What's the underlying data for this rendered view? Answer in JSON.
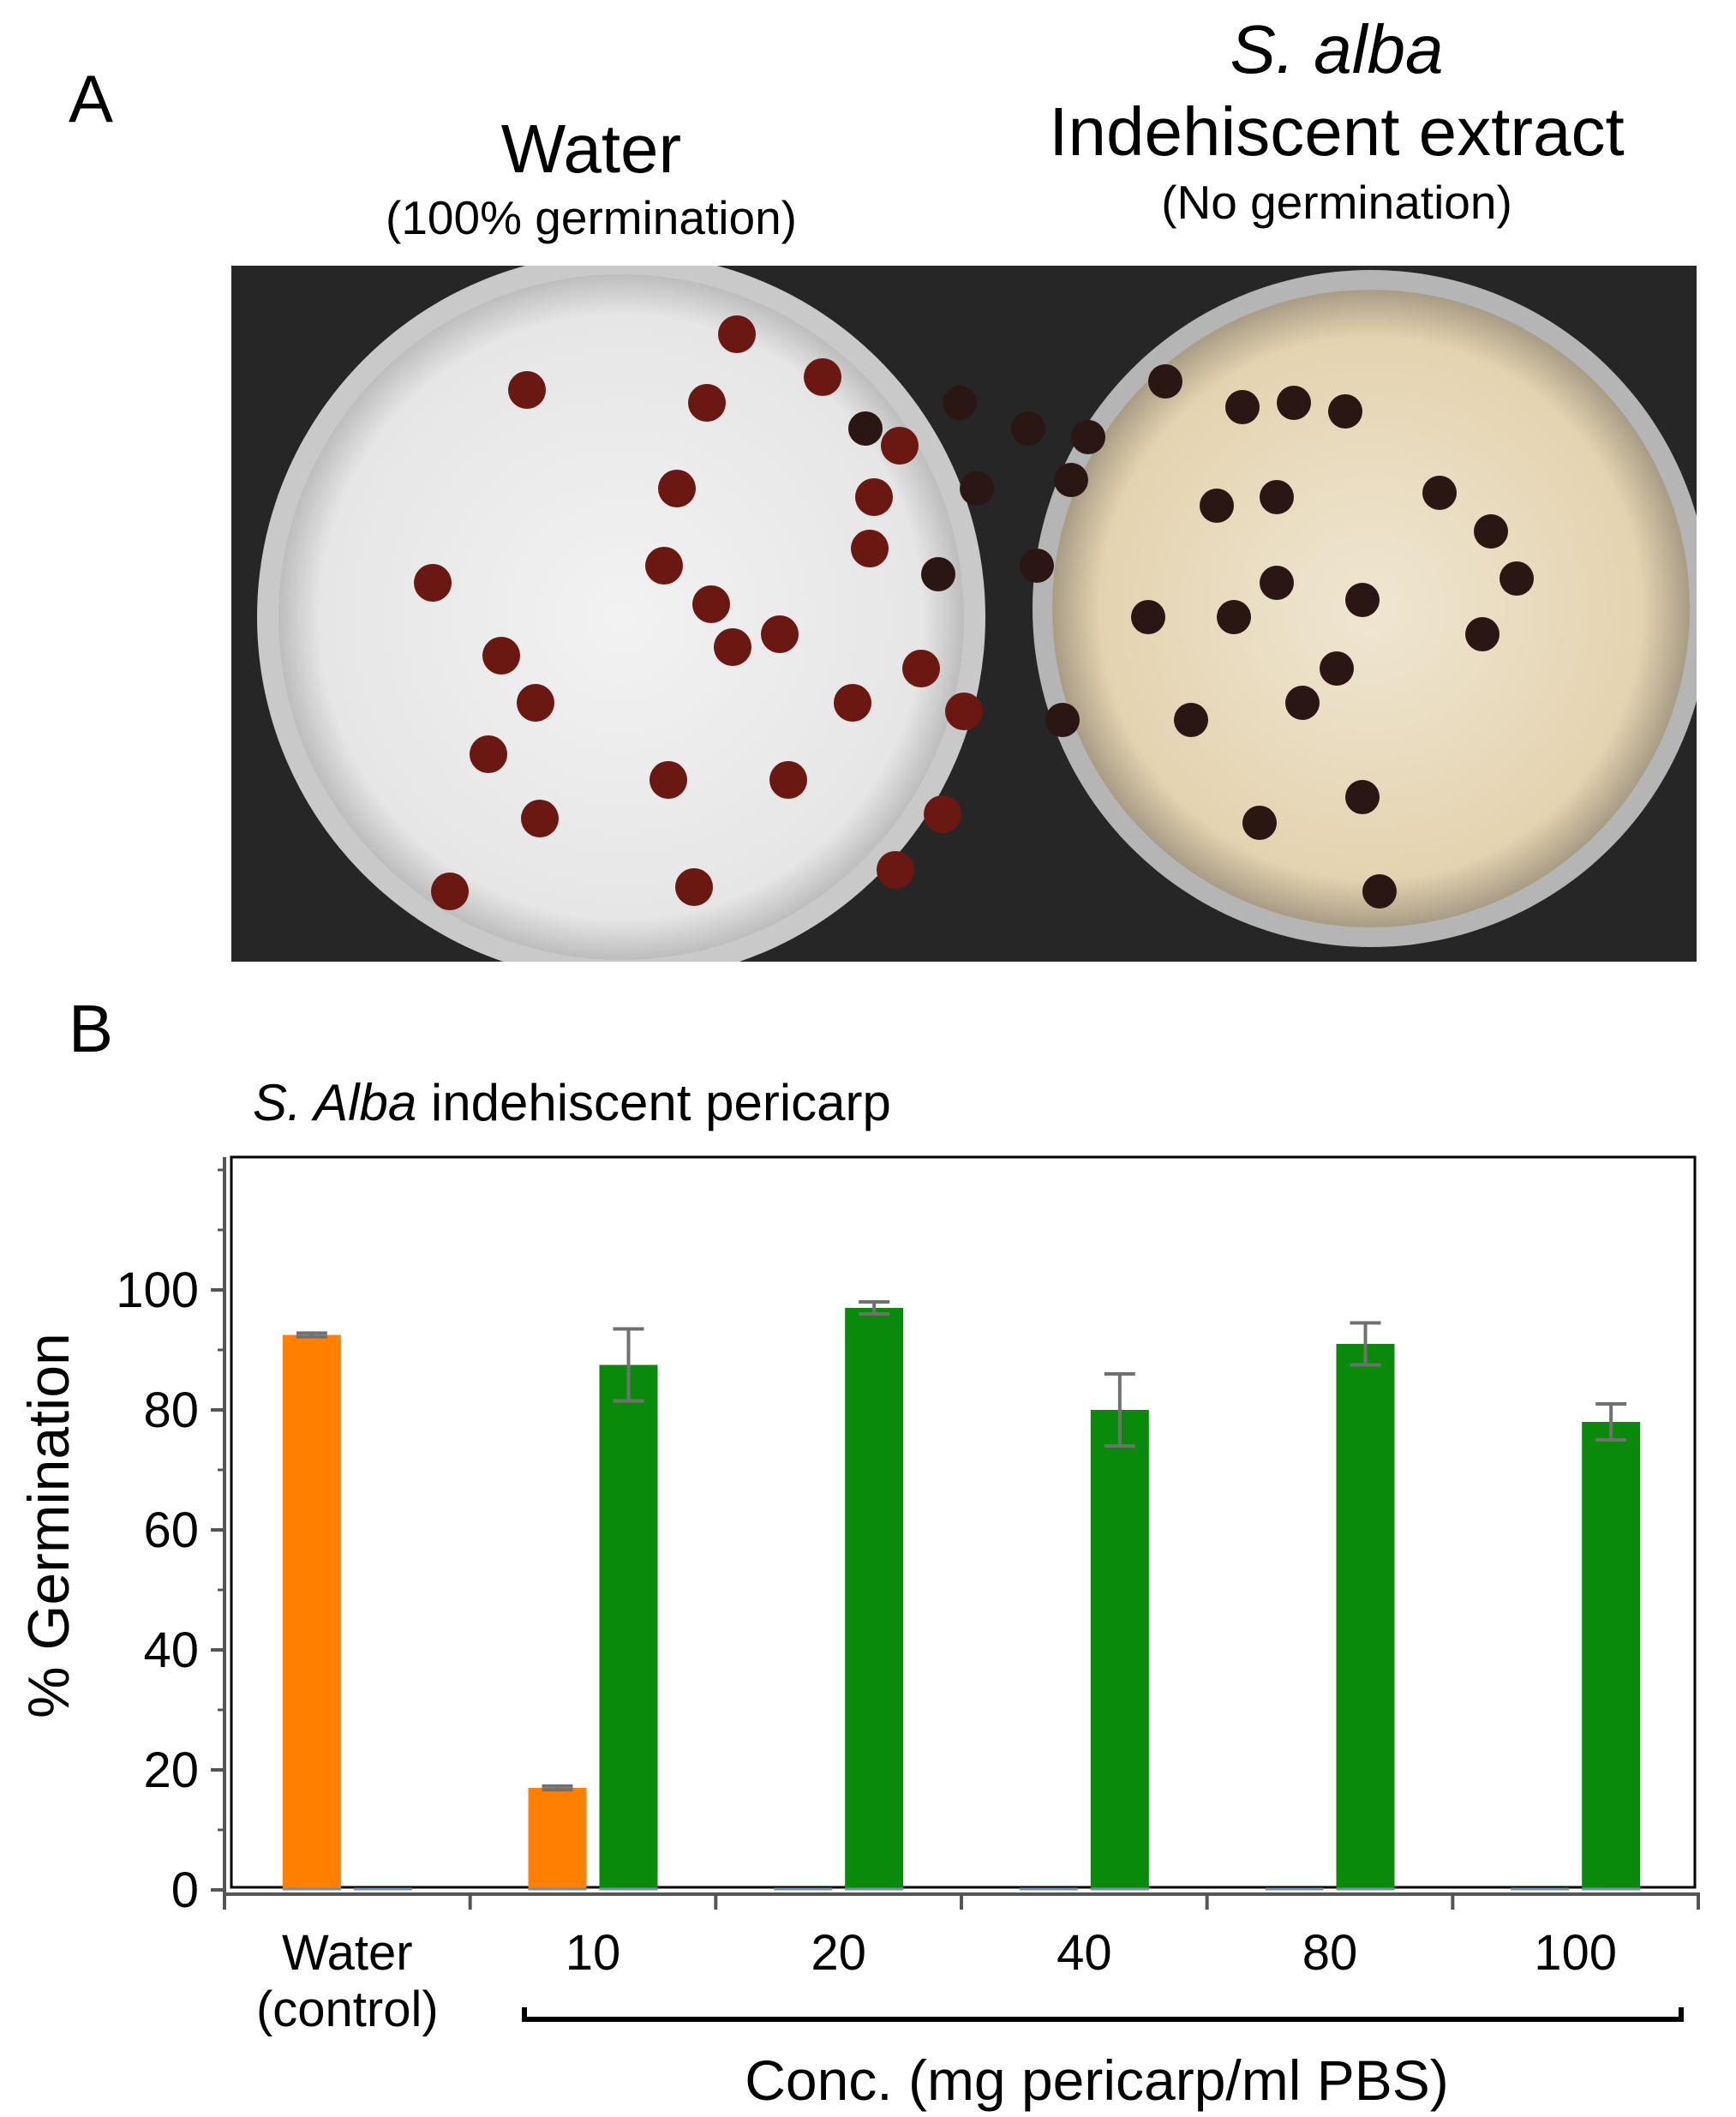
{
  "panel_a": {
    "letter": "A",
    "left_label": {
      "title": "Water",
      "subtitle": "(100% germination)"
    },
    "right_label": {
      "title_italic": "S. alba",
      "title": "Indehiscent extract",
      "subtitle": "(No germination)"
    }
  },
  "panel_b": {
    "letter": "B",
    "title_italic": "S. Alba",
    "title_rest": " indehiscent pericarp",
    "bracket_label": "Conc. (mg pericarp/ml PBS)"
  },
  "colors": {
    "orange": "#FF7F00",
    "green": "#0A8A0A",
    "error_bar": "#707070",
    "baseline": "#6f8fb0"
  },
  "chart_data": {
    "type": "bar",
    "title": "S. Alba indehiscent pericarp",
    "xlabel": "Conc. (mg pericarp/ml PBS)",
    "ylabel": "% Germination",
    "ylim": [
      0,
      120
    ],
    "yticks": [
      0,
      20,
      40,
      60,
      80,
      100
    ],
    "categories": [
      "Water (control)",
      "10",
      "20",
      "40",
      "80",
      "100"
    ],
    "category_lines": [
      [
        "Water",
        "(control)"
      ],
      [
        "10"
      ],
      [
        "20"
      ],
      [
        "40"
      ],
      [
        "80"
      ],
      [
        "100"
      ]
    ],
    "series": [
      {
        "color": "#FF7F00",
        "values": [
          92.5,
          17,
          0,
          0,
          0,
          0
        ],
        "errors": [
          0.3,
          0.3,
          0,
          0,
          0,
          0
        ]
      },
      {
        "color": "#0A8A0A",
        "values": [
          0,
          87.5,
          97,
          80,
          91,
          78
        ],
        "errors": [
          0,
          6,
          1,
          6,
          3.5,
          3
        ]
      }
    ],
    "grid": false,
    "legend": "none"
  }
}
